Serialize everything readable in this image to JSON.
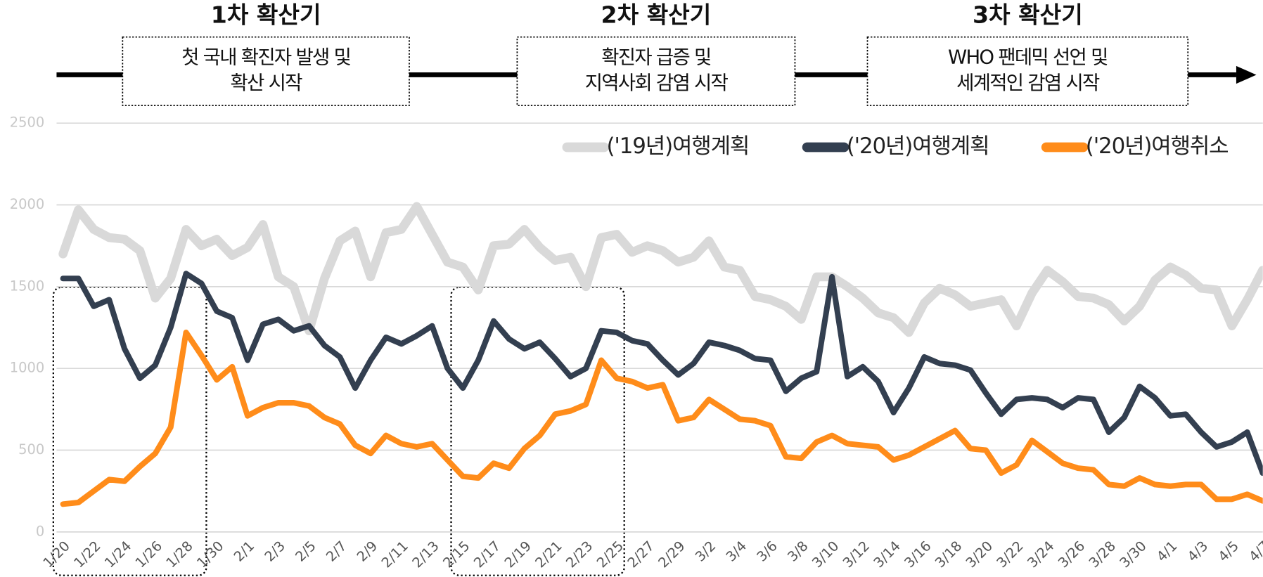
{
  "chart_data": {
    "type": "line",
    "phases": [
      {
        "title": "1차 확산기",
        "lines": [
          "첫 국내 확진자 발생 및",
          "확산 시작"
        ]
      },
      {
        "title": "2차 확산기",
        "lines": [
          "확진자 급증 및",
          "지역사회 감염 시작"
        ]
      },
      {
        "title": "3차 확산기",
        "lines": [
          "WHO 팬데믹 선언 및",
          "세계적인 감염 시작"
        ]
      }
    ],
    "categories": [
      "1/20",
      null,
      "1/22",
      null,
      "1/24",
      null,
      "1/26",
      null,
      "1/28",
      null,
      "1/30",
      null,
      "2/1",
      null,
      "2/3",
      null,
      "2/5",
      null,
      "2/7",
      null,
      "2/9",
      null,
      "2/11",
      null,
      "2/13",
      null,
      "2/15",
      null,
      "2/17",
      null,
      "2/19",
      null,
      "2/21",
      null,
      "2/23",
      null,
      "2/25",
      null,
      "2/27",
      null,
      "2/29",
      null,
      "3/2",
      null,
      "3/4",
      null,
      "3/6",
      null,
      "3/8",
      null,
      "3/10",
      null,
      "3/12",
      null,
      "3/14",
      null,
      "3/16",
      null,
      "3/18",
      null,
      "3/20",
      null,
      "3/22",
      null,
      "3/24",
      null,
      "3/26",
      null,
      "3/28",
      null,
      "3/30",
      null,
      "4/1",
      null,
      "4/3",
      null,
      "4/5",
      null,
      "4/7"
    ],
    "series": [
      {
        "name": "('19년)여행계획",
        "color": "#d9d9d9",
        "values": [
          1700,
          1970,
          1850,
          1800,
          1790,
          1720,
          1430,
          1550,
          1850,
          1750,
          1790,
          1690,
          1740,
          1880,
          1560,
          1500,
          1230,
          1550,
          1780,
          1840,
          1560,
          1830,
          1850,
          1990,
          1820,
          1650,
          1620,
          1480,
          1750,
          1760,
          1850,
          1740,
          1660,
          1680,
          1500,
          1800,
          1820,
          1710,
          1750,
          1720,
          1650,
          1680,
          1780,
          1620,
          1600,
          1440,
          1420,
          1380,
          1300,
          1560,
          1560,
          1500,
          1430,
          1340,
          1310,
          1220,
          1400,
          1490,
          1450,
          1380,
          1400,
          1420,
          1260,
          1460,
          1600,
          1530,
          1440,
          1430,
          1390,
          1290,
          1380,
          1540,
          1620,
          1570,
          1490,
          1480,
          1260,
          1420,
          1600
        ]
      },
      {
        "name": "('20년)여행계획",
        "color": "#333f50",
        "values": [
          1550,
          1550,
          1380,
          1420,
          1120,
          940,
          1020,
          1250,
          1580,
          1520,
          1350,
          1310,
          1050,
          1270,
          1300,
          1230,
          1260,
          1140,
          1070,
          880,
          1050,
          1190,
          1150,
          1200,
          1260,
          1000,
          880,
          1050,
          1290,
          1180,
          1120,
          1160,
          1060,
          950,
          1000,
          1230,
          1220,
          1170,
          1150,
          1050,
          960,
          1030,
          1160,
          1140,
          1110,
          1060,
          1050,
          860,
          940,
          980,
          1560,
          950,
          1010,
          920,
          730,
          880,
          1070,
          1030,
          1020,
          990,
          850,
          720,
          810,
          820,
          810,
          760,
          820,
          810,
          610,
          700,
          890,
          820,
          710,
          720,
          610,
          520,
          550,
          610,
          360
        ]
      },
      {
        "name": "('20년)여행취소",
        "color": "#ff8c1a",
        "values": [
          170,
          180,
          250,
          320,
          310,
          400,
          480,
          640,
          1220,
          1080,
          930,
          1010,
          710,
          760,
          790,
          790,
          770,
          700,
          660,
          530,
          480,
          590,
          540,
          520,
          540,
          440,
          340,
          330,
          420,
          390,
          510,
          590,
          720,
          740,
          780,
          1050,
          940,
          920,
          880,
          900,
          680,
          700,
          810,
          750,
          690,
          680,
          650,
          460,
          450,
          550,
          590,
          540,
          530,
          520,
          440,
          470,
          520,
          570,
          620,
          510,
          500,
          360,
          410,
          560,
          490,
          420,
          390,
          380,
          290,
          280,
          330,
          290,
          280,
          290,
          290,
          200,
          200,
          230,
          190
        ]
      }
    ],
    "ylim": [
      0,
      2500
    ],
    "yticks": [
      0,
      500,
      1000,
      1500,
      2000,
      2500
    ],
    "grid": true,
    "legend": "upper right"
  }
}
